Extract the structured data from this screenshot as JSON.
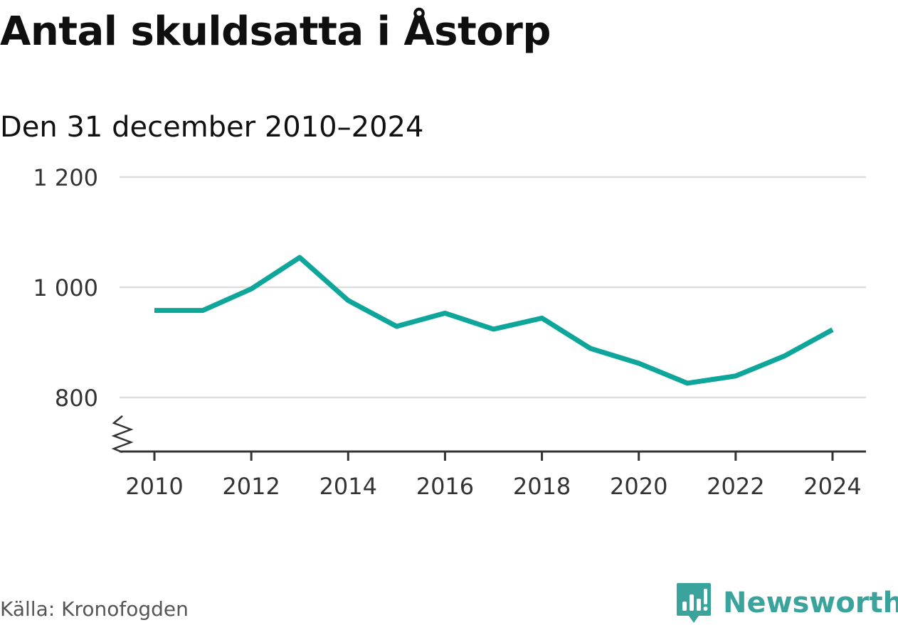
{
  "title": "Antal skuldsatta i Åstorp",
  "subtitle": "Den 31 december 2010–2024",
  "source": "Källa: Kronofogden",
  "brand": {
    "name": "Newsworthy",
    "icon": "newsworthy-logo-icon",
    "color": "#3aa39b"
  },
  "colors": {
    "line": "#0ea59a",
    "grid": "#dddddd",
    "axis": "#333333",
    "tick_label": "#333333"
  },
  "chart_data": {
    "type": "line",
    "title": "Antal skuldsatta i Åstorp",
    "subtitle": "Den 31 december 2010–2024",
    "xlabel": "",
    "ylabel": "",
    "x": [
      2010,
      2011,
      2012,
      2013,
      2014,
      2015,
      2016,
      2017,
      2018,
      2019,
      2020,
      2021,
      2022,
      2023,
      2024
    ],
    "series": [
      {
        "values": [
          958,
          958,
          997,
          1054,
          976,
          929,
          953,
          924,
          944,
          889,
          862,
          826,
          839,
          875,
          923
        ]
      }
    ],
    "ylim": [
      700,
      1200
    ],
    "y_axis_break": true,
    "y_ticks": [
      800,
      1000,
      1200
    ],
    "y_tick_labels": [
      "800",
      "1 000",
      "1 200"
    ],
    "x_ticks": [
      2010,
      2012,
      2014,
      2016,
      2018,
      2020,
      2022,
      2024
    ],
    "x_tick_labels": [
      "2010",
      "2012",
      "2014",
      "2016",
      "2018",
      "2020",
      "2022",
      "2024"
    ],
    "grid": true,
    "legend": "none"
  }
}
